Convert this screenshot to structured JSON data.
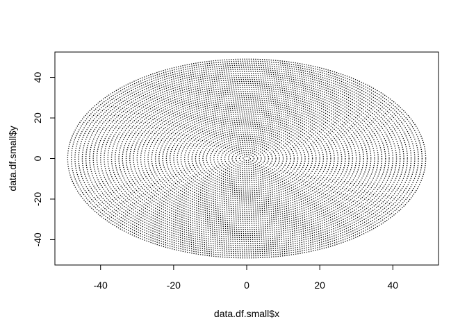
{
  "chart_data": {
    "type": "scatter",
    "title": "",
    "xlabel": "data.df.small$x",
    "ylabel": "data.df.small$y",
    "xlim": [
      -52.5,
      52.5
    ],
    "ylim": [
      -52.5,
      52.5
    ],
    "xticks": [
      -40,
      -20,
      0,
      20,
      40
    ],
    "yticks": [
      -40,
      -20,
      0,
      20,
      40
    ],
    "xtick_labels": [
      "-40",
      "-20",
      "0",
      "20",
      "40"
    ],
    "ytick_labels": [
      "-40",
      "-20",
      "0",
      "20",
      "40"
    ],
    "grid": false,
    "legend": "none",
    "point_color": "#000000",
    "series": [
      {
        "description": "concentric rings of points centred at the origin, radius 1 to 49 in steps of 1, points spread evenly around each ring",
        "center": [
          0,
          0
        ],
        "ring_radii_range": [
          1,
          49
        ],
        "ring_step": 1
      }
    ]
  }
}
